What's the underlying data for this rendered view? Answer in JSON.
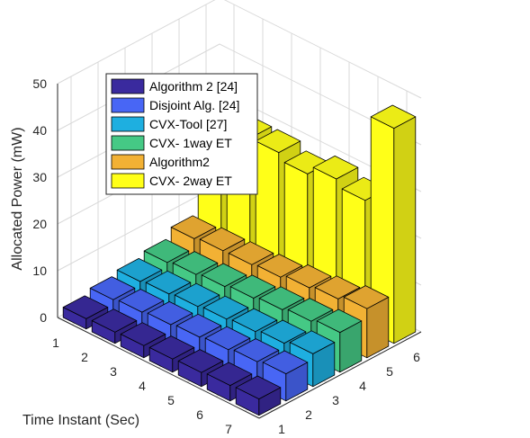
{
  "chart_data": {
    "type": "bar",
    "subtype": "bar3d",
    "title": "",
    "xlabel": "Time Instant (Sec)",
    "ylabel": "",
    "zlabel": "Allocated Power (mW)",
    "zlim": [
      0,
      50
    ],
    "z_ticks": [
      "0",
      "10",
      "20",
      "30",
      "40",
      "50"
    ],
    "x": [
      "1",
      "2",
      "3",
      "4",
      "5",
      "6",
      "7"
    ],
    "y_ticks": [
      "1",
      "2",
      "3",
      "4",
      "5",
      "6"
    ],
    "grid": true,
    "legend": "top-left",
    "series": [
      {
        "name": "Algorithm 2 [24]",
        "color": "#3a2a9e",
        "values": [
          2.2,
          2.4,
          2.6,
          2.8,
          3.0,
          3.3,
          3.5
        ]
      },
      {
        "name": "Disjoint Alg. [24]",
        "color": "#4866f5",
        "values": [
          3.2,
          3.6,
          4.0,
          4.4,
          4.8,
          5.3,
          5.8
        ]
      },
      {
        "name": "CVX-Tool [27]",
        "color": "#1eafe0",
        "values": [
          4.0,
          4.4,
          4.8,
          5.2,
          5.6,
          6.2,
          7.0
        ]
      },
      {
        "name": "CVX- 1way ET",
        "color": "#45c985",
        "values": [
          5.0,
          5.5,
          6.0,
          6.6,
          7.2,
          7.8,
          8.5
        ]
      },
      {
        "name": "Algorithm2",
        "color": "#f2b134",
        "values": [
          7.0,
          7.5,
          7.6,
          8.0,
          8.8,
          9.5,
          10.5
        ]
      },
      {
        "name": "CVX- 2way ET",
        "color": "#ffff18",
        "values": [
          29.0,
          28.5,
          28.5,
          27.0,
          29.0,
          27.5,
          46.0
        ]
      }
    ]
  }
}
